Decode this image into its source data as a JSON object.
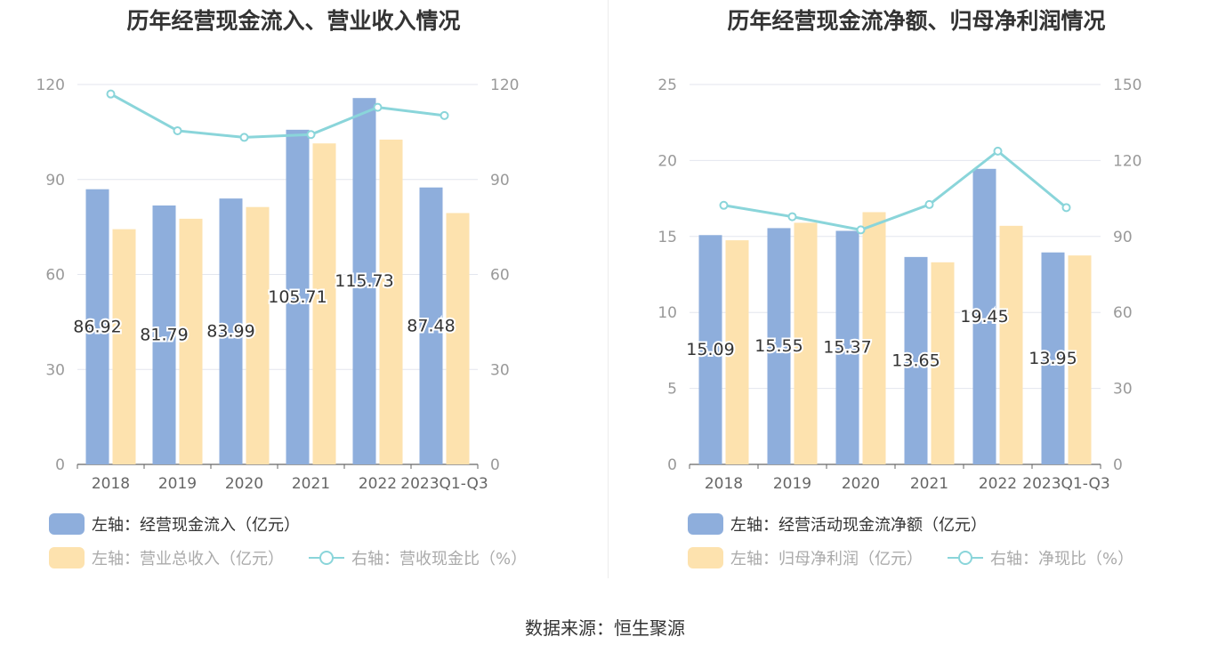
{
  "charts": [
    {
      "title": "历年经营现金流入、营业收入情况",
      "legend": [
        {
          "label": "左轴：经营现金流入（亿元）"
        },
        {
          "label": "左轴：营业总收入（亿元）"
        },
        {
          "label": "右轴：营收现金比（%）"
        }
      ]
    },
    {
      "title": "历年经营现金流净额、归母净利润情况",
      "legend": [
        {
          "label": "左轴：经营活动现金流净额（亿元）"
        },
        {
          "label": "左轴：归母净利润（亿元）"
        },
        {
          "label": "右轴：净现比（%）"
        }
      ]
    }
  ],
  "source": "数据来源：恒生聚源",
  "colors": {
    "bar1": "#8eaedc",
    "bar2": "#fde2ae",
    "line": "#8ad5da",
    "axis": "#666666",
    "grid": "#e3e6ee",
    "tick": "#999999"
  },
  "chart_data": [
    {
      "type": "bar",
      "categories": [
        "2018",
        "2019",
        "2020",
        "2021",
        "2022",
        "2023Q1-Q3"
      ],
      "ylim_left": [
        0,
        120
      ],
      "yticks_left": [
        0,
        30,
        60,
        90,
        120
      ],
      "ylim_right": [
        0,
        120
      ],
      "yticks_right": [
        0,
        30,
        60,
        90,
        120
      ],
      "series": [
        {
          "name": "左轴：经营现金流入（亿元）",
          "axis": "left",
          "kind": "bar",
          "values": [
            86.92,
            81.79,
            83.99,
            105.71,
            115.73,
            87.48
          ],
          "show_labels": true
        },
        {
          "name": "左轴：营业总收入（亿元）",
          "axis": "left",
          "kind": "bar",
          "values": [
            74.3,
            77.6,
            81.3,
            101.4,
            102.6,
            79.4
          ],
          "show_labels": false
        },
        {
          "name": "右轴：营收现金比（%）",
          "axis": "right",
          "kind": "line",
          "values": [
            117.0,
            105.4,
            103.3,
            104.2,
            112.8,
            110.2
          ],
          "show_labels": false
        }
      ]
    },
    {
      "type": "bar",
      "categories": [
        "2018",
        "2019",
        "2020",
        "2021",
        "2022",
        "2023Q1-Q3"
      ],
      "ylim_left": [
        0,
        25
      ],
      "yticks_left": [
        0,
        5,
        10,
        15,
        20,
        25
      ],
      "ylim_right": [
        0,
        150
      ],
      "yticks_right": [
        0,
        30,
        60,
        90,
        120,
        150
      ],
      "series": [
        {
          "name": "左轴：经营活动现金流净额（亿元）",
          "axis": "left",
          "kind": "bar",
          "values": [
            15.09,
            15.55,
            15.37,
            13.65,
            19.45,
            13.95
          ],
          "show_labels": true
        },
        {
          "name": "左轴：归母净利润（亿元）",
          "axis": "left",
          "kind": "bar",
          "values": [
            14.75,
            15.9,
            16.6,
            13.3,
            15.7,
            13.75
          ],
          "show_labels": false
        },
        {
          "name": "右轴：净现比（%）",
          "axis": "right",
          "kind": "line",
          "values": [
            102.3,
            97.8,
            92.6,
            102.6,
            123.7,
            101.4
          ],
          "show_labels": false
        }
      ]
    }
  ]
}
